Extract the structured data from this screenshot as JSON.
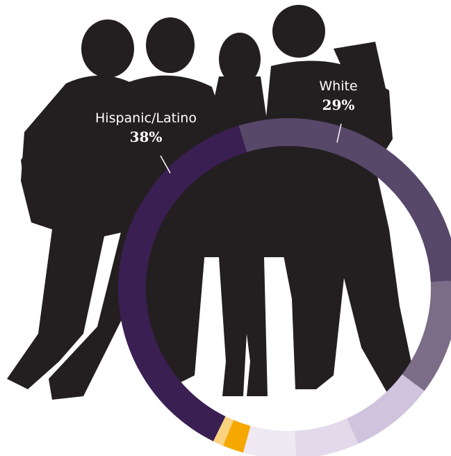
{
  "chart_data": {
    "type": "pie",
    "categories": [
      "White",
      null,
      null,
      null,
      null,
      null,
      null,
      "Hispanic/Latino"
    ],
    "values": [
      29,
      11,
      8,
      6,
      5,
      2,
      1,
      38
    ],
    "value_labels": [
      "29%",
      null,
      null,
      null,
      null,
      null,
      null,
      "38%"
    ],
    "colors": [
      "#574769",
      "#7b6d88",
      "#cfc3de",
      "#e2d9ea",
      "#efe9f4",
      "#f5a800",
      "#fbd27e",
      "#3a1f52"
    ]
  }
}
